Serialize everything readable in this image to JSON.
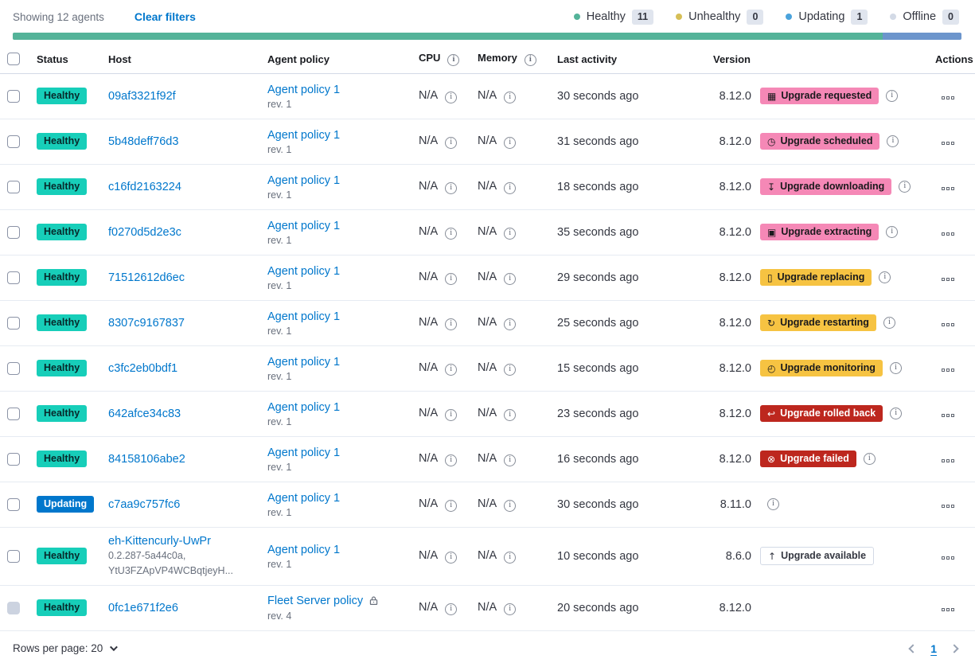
{
  "toolbar": {
    "showing": "Showing 12 agents",
    "clear_filters": "Clear filters"
  },
  "legend": {
    "items": [
      {
        "label": "Healthy",
        "count": "11",
        "color": "#54B399"
      },
      {
        "label": "Unhealthy",
        "count": "0",
        "color": "#D6BF57"
      },
      {
        "label": "Updating",
        "count": "1",
        "color": "#4BA3DC"
      },
      {
        "label": "Offline",
        "count": "0",
        "color": "#D3DAE6"
      }
    ]
  },
  "progress": {
    "segments": [
      {
        "color": "#54B399",
        "pct": 91.7
      },
      {
        "color": "#6C95CC",
        "pct": 8.3
      }
    ]
  },
  "table": {
    "headers": [
      {
        "label": "Status"
      },
      {
        "label": "Host"
      },
      {
        "label": "Agent policy"
      },
      {
        "label": "CPU",
        "info": true
      },
      {
        "label": "Memory",
        "info": true
      },
      {
        "label": "Last activity"
      },
      {
        "label": "Version"
      },
      {
        "label": "Actions",
        "align": "right"
      }
    ],
    "rows": [
      {
        "status": {
          "label": "Healthy",
          "type": "healthy"
        },
        "host": {
          "name": "09af3321f92f"
        },
        "policy": {
          "name": "Agent policy 1",
          "rev": "rev. 1",
          "locked": false
        },
        "cpu": "N/A",
        "memory": "N/A",
        "last_activity": "30 seconds ago",
        "version": "8.12.0",
        "upgrade": {
          "label": "Upgrade requested",
          "type": "accent",
          "icon": "calendar-icon"
        },
        "upgrade_info": true,
        "version_info": false,
        "checkbox_disabled": false
      },
      {
        "status": {
          "label": "Healthy",
          "type": "healthy"
        },
        "host": {
          "name": "5b48deff76d3"
        },
        "policy": {
          "name": "Agent policy 1",
          "rev": "rev. 1",
          "locked": false
        },
        "cpu": "N/A",
        "memory": "N/A",
        "last_activity": "31 seconds ago",
        "version": "8.12.0",
        "upgrade": {
          "label": "Upgrade scheduled",
          "type": "accent",
          "icon": "clock-icon"
        },
        "upgrade_info": true,
        "version_info": false,
        "checkbox_disabled": false
      },
      {
        "status": {
          "label": "Healthy",
          "type": "healthy"
        },
        "host": {
          "name": "c16fd2163224"
        },
        "policy": {
          "name": "Agent policy 1",
          "rev": "rev. 1",
          "locked": false
        },
        "cpu": "N/A",
        "memory": "N/A",
        "last_activity": "18 seconds ago",
        "version": "8.12.0",
        "upgrade": {
          "label": "Upgrade downloading",
          "type": "accent",
          "icon": "download-icon"
        },
        "upgrade_info": true,
        "version_info": false,
        "checkbox_disabled": false
      },
      {
        "status": {
          "label": "Healthy",
          "type": "healthy"
        },
        "host": {
          "name": "f0270d5d2e3c"
        },
        "policy": {
          "name": "Agent policy 1",
          "rev": "rev. 1",
          "locked": false
        },
        "cpu": "N/A",
        "memory": "N/A",
        "last_activity": "35 seconds ago",
        "version": "8.12.0",
        "upgrade": {
          "label": "Upgrade extracting",
          "type": "accent",
          "icon": "package-icon"
        },
        "upgrade_info": true,
        "version_info": false,
        "checkbox_disabled": false
      },
      {
        "status": {
          "label": "Healthy",
          "type": "healthy"
        },
        "host": {
          "name": "71512612d6ec"
        },
        "policy": {
          "name": "Agent policy 1",
          "rev": "rev. 1",
          "locked": false
        },
        "cpu": "N/A",
        "memory": "N/A",
        "last_activity": "29 seconds ago",
        "version": "8.12.0",
        "upgrade": {
          "label": "Upgrade replacing",
          "type": "warning",
          "icon": "document-icon"
        },
        "upgrade_info": true,
        "version_info": false,
        "checkbox_disabled": false
      },
      {
        "status": {
          "label": "Healthy",
          "type": "healthy"
        },
        "host": {
          "name": "8307c9167837"
        },
        "policy": {
          "name": "Agent policy 1",
          "rev": "rev. 1",
          "locked": false
        },
        "cpu": "N/A",
        "memory": "N/A",
        "last_activity": "25 seconds ago",
        "version": "8.12.0",
        "upgrade": {
          "label": "Upgrade restarting",
          "type": "warning",
          "icon": "restart-icon"
        },
        "upgrade_info": true,
        "version_info": false,
        "checkbox_disabled": false
      },
      {
        "status": {
          "label": "Healthy",
          "type": "healthy"
        },
        "host": {
          "name": "c3fc2eb0bdf1"
        },
        "policy": {
          "name": "Agent policy 1",
          "rev": "rev. 1",
          "locked": false
        },
        "cpu": "N/A",
        "memory": "N/A",
        "last_activity": "15 seconds ago",
        "version": "8.12.0",
        "upgrade": {
          "label": "Upgrade monitoring",
          "type": "warning",
          "icon": "monitoring-icon"
        },
        "upgrade_info": true,
        "version_info": false,
        "checkbox_disabled": false
      },
      {
        "status": {
          "label": "Healthy",
          "type": "healthy"
        },
        "host": {
          "name": "642afce34c83"
        },
        "policy": {
          "name": "Agent policy 1",
          "rev": "rev. 1",
          "locked": false
        },
        "cpu": "N/A",
        "memory": "N/A",
        "last_activity": "23 seconds ago",
        "version": "8.12.0",
        "upgrade": {
          "label": "Upgrade rolled back",
          "type": "danger",
          "icon": "rollback-icon"
        },
        "upgrade_info": true,
        "version_info": false,
        "checkbox_disabled": false
      },
      {
        "status": {
          "label": "Healthy",
          "type": "healthy"
        },
        "host": {
          "name": "84158106abe2"
        },
        "policy": {
          "name": "Agent policy 1",
          "rev": "rev. 1",
          "locked": false
        },
        "cpu": "N/A",
        "memory": "N/A",
        "last_activity": "16 seconds ago",
        "version": "8.12.0",
        "upgrade": {
          "label": "Upgrade failed",
          "type": "danger",
          "icon": "failed-icon"
        },
        "upgrade_info": true,
        "version_info": false,
        "checkbox_disabled": false
      },
      {
        "status": {
          "label": "Updating",
          "type": "updating"
        },
        "host": {
          "name": "c7aa9c757fc6"
        },
        "policy": {
          "name": "Agent policy 1",
          "rev": "rev. 1",
          "locked": false
        },
        "cpu": "N/A",
        "memory": "N/A",
        "last_activity": "30 seconds ago",
        "version": "8.11.0",
        "upgrade": null,
        "upgrade_info": false,
        "version_info": true,
        "checkbox_disabled": false
      },
      {
        "status": {
          "label": "Healthy",
          "type": "healthy"
        },
        "host": {
          "name": "eh-Kittencurly-UwPr",
          "sub": [
            "0.2.287-5a44c0a,",
            "YtU3FZApVP4WCBqtjeyH..."
          ]
        },
        "policy": {
          "name": "Agent policy 1",
          "rev": "rev. 1",
          "locked": false
        },
        "cpu": "N/A",
        "memory": "N/A",
        "last_activity": "10 seconds ago",
        "version": "8.6.0",
        "upgrade": {
          "label": "Upgrade available",
          "type": "hollow",
          "icon": "upgrade-icon"
        },
        "upgrade_info": false,
        "version_info": false,
        "checkbox_disabled": false,
        "tall": true
      },
      {
        "status": {
          "label": "Healthy",
          "type": "healthy"
        },
        "host": {
          "name": "0fc1e671f2e6"
        },
        "policy": {
          "name": "Fleet Server policy",
          "rev": "rev. 4",
          "locked": true
        },
        "cpu": "N/A",
        "memory": "N/A",
        "last_activity": "20 seconds ago",
        "version": "8.12.0",
        "upgrade": null,
        "upgrade_info": false,
        "version_info": false,
        "checkbox_disabled": true
      }
    ]
  },
  "footer": {
    "rows_per_page": "Rows per page: 20",
    "page": "1"
  }
}
